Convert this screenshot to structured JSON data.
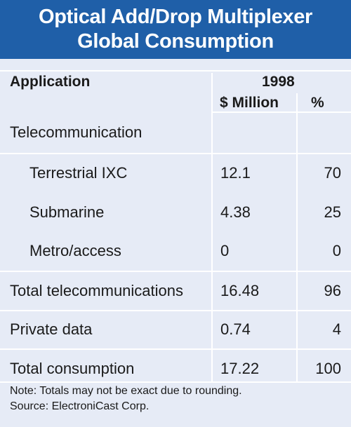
{
  "title": {
    "line1": "Optical Add/Drop Multiplexer",
    "line2": "Global Consumption"
  },
  "header": {
    "application": "Application",
    "year": "1998",
    "col_million": "$ Million",
    "col_percent": "%"
  },
  "rows": [
    {
      "label": "Telecommunication",
      "million": "",
      "percent": ""
    },
    {
      "label": "Terrestrial IXC",
      "million": "12.1",
      "percent": "70"
    },
    {
      "label": "Submarine",
      "million": "4.38",
      "percent": "25"
    },
    {
      "label": "Metro/access",
      "million": "0",
      "percent": "0"
    },
    {
      "label": "Total telecommunications",
      "million": "16.48",
      "percent": "96"
    },
    {
      "label": "Private data",
      "million": "0.74",
      "percent": "4"
    },
    {
      "label": "Total consumption",
      "million": "17.22",
      "percent": "100"
    }
  ],
  "notes": {
    "note": "Note: Totals may not be exact due to rounding.",
    "source": "Source: ElectroniCast Corp."
  },
  "colors": {
    "title_bg": "#1f5fa8",
    "panel_bg": "#e6ebf6",
    "divider": "#ffffff"
  }
}
